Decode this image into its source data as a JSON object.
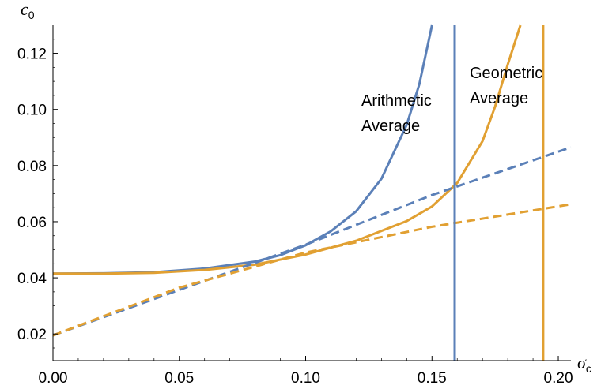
{
  "chart_data": {
    "type": "line",
    "xlabel": "σ",
    "xlabel_sub": "c",
    "ylabel": "c",
    "ylabel_sub": "0",
    "xlim": [
      0,
      0.205
    ],
    "ylim": [
      0.0105,
      0.13
    ],
    "x_ticks": [
      "0.00",
      "0.05",
      "0.10",
      "0.15",
      "0.20"
    ],
    "y_ticks": [
      "0.02",
      "0.04",
      "0.06",
      "0.08",
      "0.10",
      "0.12"
    ],
    "grid": false,
    "annotations": [
      {
        "text_lines": [
          "Arithmetic",
          "Average"
        ],
        "color": "#000000"
      },
      {
        "text_lines": [
          "Geometric",
          "Average"
        ],
        "color": "#000000"
      }
    ],
    "series": [
      {
        "color": "#5B80B8",
        "style": "solid",
        "x": [
          0,
          0.02,
          0.04,
          0.06,
          0.08,
          0.09,
          0.1,
          0.11,
          0.12,
          0.13,
          0.14,
          0.145,
          0.15
        ],
        "y": [
          0.0415,
          0.0416,
          0.042,
          0.0433,
          0.0458,
          0.0481,
          0.0516,
          0.0566,
          0.0637,
          0.0753,
          0.0945,
          0.109,
          0.13
        ]
      },
      {
        "color": "#E1A032",
        "style": "solid",
        "x": [
          0,
          0.02,
          0.04,
          0.06,
          0.08,
          0.1,
          0.12,
          0.14,
          0.15,
          0.16,
          0.17,
          0.175,
          0.18,
          0.185
        ],
        "y": [
          0.0415,
          0.0415,
          0.0418,
          0.0428,
          0.0447,
          0.0483,
          0.0532,
          0.0602,
          0.0654,
          0.0738,
          0.0887,
          0.101,
          0.116,
          0.13
        ]
      },
      {
        "color": "#5B80B8",
        "style": "dashed",
        "x": [
          0,
          0.05,
          0.1,
          0.15,
          0.205
        ],
        "y": [
          0.0195,
          0.0357,
          0.0518,
          0.0695,
          0.0865
        ]
      },
      {
        "color": "#E1A032",
        "style": "dashed",
        "x": [
          0,
          0.05,
          0.1,
          0.15,
          0.205
        ],
        "y": [
          0.0195,
          0.0365,
          0.049,
          0.0582,
          0.0662
        ]
      },
      {
        "color": "#5B80B8",
        "style": "vertical",
        "x": [
          0.159,
          0.159
        ],
        "y": [
          0.0105,
          0.13
        ]
      },
      {
        "color": "#E1A032",
        "style": "vertical",
        "x": [
          0.194,
          0.194
        ],
        "y": [
          0.0105,
          0.13
        ]
      }
    ]
  }
}
